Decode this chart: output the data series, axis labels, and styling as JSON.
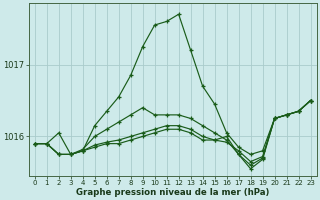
{
  "xlabel": "Graphe pression niveau de la mer (hPa)",
  "bg_color": "#ceeaea",
  "line_color": "#1a5c1a",
  "grid_color": "#aacccc",
  "yticks": [
    1016,
    1017
  ],
  "ylim": [
    1015.45,
    1017.85
  ],
  "xlim": [
    -0.5,
    23.5
  ],
  "xticks": [
    0,
    1,
    2,
    3,
    4,
    5,
    6,
    7,
    8,
    9,
    10,
    11,
    12,
    13,
    14,
    15,
    16,
    17,
    18,
    19,
    20,
    21,
    22,
    23
  ],
  "series": [
    {
      "x": [
        0,
        1,
        2,
        3,
        4,
        5,
        6,
        7,
        8,
        9,
        10,
        11,
        12,
        13,
        14,
        15,
        16,
        17,
        18,
        19,
        20,
        21,
        22,
        23
      ],
      "y": [
        1015.9,
        1015.9,
        1016.05,
        1015.75,
        1015.8,
        1016.15,
        1016.35,
        1016.55,
        1016.85,
        1017.25,
        1017.55,
        1017.6,
        1017.7,
        1017.2,
        1016.7,
        1016.45,
        1016.05,
        1015.85,
        1015.75,
        1015.8,
        1016.25,
        1016.3,
        1016.35,
        1016.5
      ]
    },
    {
      "x": [
        0,
        1,
        2,
        3,
        4,
        5,
        6,
        7,
        8,
        9,
        10,
        11,
        12,
        13,
        14,
        15,
        16,
        17,
        18,
        19,
        20,
        21,
        22,
        23
      ],
      "y": [
        1015.9,
        1015.9,
        1015.75,
        1015.75,
        1015.8,
        1015.85,
        1015.9,
        1015.9,
        1015.95,
        1016.0,
        1016.05,
        1016.1,
        1016.1,
        1016.05,
        1015.95,
        1015.95,
        1016.0,
        1015.75,
        1015.6,
        1015.7,
        1016.25,
        1016.3,
        1016.35,
        1016.5
      ]
    },
    {
      "x": [
        0,
        1,
        2,
        3,
        4,
        5,
        6,
        7,
        8,
        9,
        10,
        11,
        12,
        13,
        14,
        15,
        16,
        17,
        18,
        19,
        20,
        21,
        22,
        23
      ],
      "y": [
        1015.9,
        1015.9,
        1015.75,
        1015.75,
        1015.8,
        1015.88,
        1015.92,
        1015.95,
        1016.0,
        1016.05,
        1016.1,
        1016.15,
        1016.15,
        1016.1,
        1016.0,
        1015.95,
        1015.92,
        1015.8,
        1015.65,
        1015.72,
        1016.25,
        1016.3,
        1016.35,
        1016.5
      ]
    },
    {
      "x": [
        0,
        1,
        2,
        3,
        4,
        5,
        6,
        7,
        8,
        9,
        10,
        11,
        12,
        13,
        14,
        15,
        16,
        17,
        18,
        19,
        20,
        21,
        22,
        23
      ],
      "y": [
        1015.9,
        1015.9,
        1015.75,
        1015.75,
        1015.82,
        1016.0,
        1016.1,
        1016.2,
        1016.3,
        1016.4,
        1016.3,
        1016.3,
        1016.3,
        1016.25,
        1016.15,
        1016.05,
        1015.95,
        1015.75,
        1015.55,
        1015.68,
        1016.25,
        1016.3,
        1016.35,
        1016.5
      ]
    }
  ]
}
